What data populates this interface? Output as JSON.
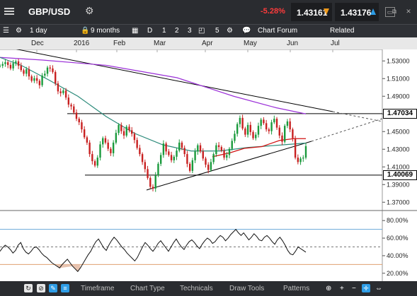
{
  "header": {
    "symbol": "GBP/USD",
    "change": "-5.28%",
    "bid": "1.43161",
    "ask": "1.43176",
    "icons": [
      "menu-icon",
      "gear-icon",
      "window-restore-icon",
      "popout-icon",
      "close-icon"
    ]
  },
  "toolbar": {
    "timeframe": "1 day",
    "range": "9 months",
    "buttons": [
      "D",
      "1",
      "2",
      "3"
    ],
    "count": "5",
    "forum": "Chart Forum",
    "related": "Related"
  },
  "axis_months": [
    "Dec",
    "2016",
    "Feb",
    "Mar",
    "Apr",
    "May",
    "Jun",
    "Jul"
  ],
  "price_tags": {
    "upper": "1.47034",
    "lower": "1.40069"
  },
  "price_axis": [
    "1.53000",
    "1.51000",
    "1.49000",
    "1.47000",
    "1.45000",
    "1.43000",
    "1.41000",
    "1.39000",
    "1.37000"
  ],
  "rsi_axis": [
    "80.00%",
    "60.00%",
    "40.00%",
    "20.00%"
  ],
  "bottom": {
    "tabs": [
      "Timeframe",
      "Chart Type",
      "Technicals",
      "Draw Tools",
      "Patterns"
    ]
  },
  "colors": {
    "bull": "#1a9a3c",
    "bear": "#c82020",
    "ma_long": "#9b30d8",
    "ma_mid": "#2b8a7a",
    "ma_short": "#d11111",
    "rsi_fill": "#e8c4b0"
  },
  "chart_data": {
    "type": "candlestick",
    "ylim": [
      1.363,
      1.543
    ],
    "levels": {
      "resistance": 1.47034,
      "support": 1.40069
    },
    "closes": [
      1.5245,
      1.5265,
      1.5285,
      1.5255,
      1.5215,
      1.5275,
      1.5295,
      1.5245,
      1.5195,
      1.5155,
      1.5205,
      1.5125,
      1.5075,
      1.5105,
      1.5075,
      1.5025,
      1.5135,
      1.5155,
      1.5225,
      1.5215,
      1.5175,
      1.5045,
      1.4955,
      1.4935,
      1.4965,
      1.4885,
      1.4805,
      1.4785,
      1.4715,
      1.4645,
      1.4605,
      1.4525,
      1.4435,
      1.4375,
      1.4245,
      1.4165,
      1.4115,
      1.4205,
      1.4355,
      1.4425,
      1.4375,
      1.4305,
      1.4255,
      1.4375,
      1.4485,
      1.4575,
      1.4505,
      1.4455,
      1.4555,
      1.4515,
      1.4475,
      1.4405,
      1.4315,
      1.4245,
      1.4155,
      1.4075,
      1.3975,
      1.3875,
      1.3855,
      1.4005,
      1.4135,
      1.4235,
      1.4365,
      1.4275,
      1.4235,
      1.4175,
      1.4215,
      1.4285,
      1.4375,
      1.4315,
      1.4245,
      1.4135,
      1.4055,
      1.4175,
      1.4275,
      1.4345,
      1.4275,
      1.4195,
      1.4125,
      1.4065,
      1.4155,
      1.4245,
      1.4345,
      1.4325,
      1.4285,
      1.4205,
      1.4235,
      1.4305,
      1.4395,
      1.4475,
      1.4585,
      1.4655,
      1.4535,
      1.4465,
      1.4575,
      1.4495,
      1.4425,
      1.4465,
      1.4565,
      1.4635,
      1.4595,
      1.4525,
      1.4505,
      1.4605,
      1.4645,
      1.4545,
      1.4455,
      1.4385,
      1.4565,
      1.4615,
      1.4525,
      1.4425,
      1.4205,
      1.4155,
      1.4195,
      1.4205,
      1.4335
    ],
    "ma_long": [
      [
        0,
        1.534
      ],
      [
        60,
        1.531
      ],
      [
        150,
        1.525
      ],
      [
        250,
        1.511
      ],
      [
        330,
        1.49
      ],
      [
        390,
        1.477
      ],
      [
        432,
        1.47
      ]
    ],
    "ma_mid": [
      [
        0,
        1.534
      ],
      [
        30,
        1.525
      ],
      [
        70,
        1.508
      ],
      [
        110,
        1.49
      ],
      [
        150,
        1.467
      ],
      [
        190,
        1.448
      ],
      [
        230,
        1.435
      ],
      [
        270,
        1.428
      ],
      [
        310,
        1.428
      ],
      [
        350,
        1.432
      ],
      [
        400,
        1.435
      ],
      [
        432,
        1.437
      ]
    ],
    "ma_short": [
      [
        300,
        1.4215
      ],
      [
        325,
        1.426
      ],
      [
        345,
        1.431
      ],
      [
        370,
        1.433
      ],
      [
        395,
        1.44
      ],
      [
        415,
        1.442
      ],
      [
        432,
        1.442
      ]
    ],
    "rsi": [
      45,
      49,
      52,
      50,
      47,
      43,
      46,
      52,
      55,
      48,
      44,
      42,
      45,
      49,
      50,
      47,
      43,
      40,
      38,
      35,
      32,
      30,
      28,
      26,
      30,
      33,
      36,
      32,
      28,
      25,
      22,
      26,
      31,
      36,
      41,
      45,
      51,
      56,
      59,
      54,
      49,
      46,
      52,
      57,
      61,
      58,
      54,
      50,
      47,
      43,
      40,
      37,
      34,
      38,
      44,
      50,
      55,
      52,
      48,
      45,
      49,
      54,
      57,
      53,
      49,
      45,
      50,
      55,
      59,
      54,
      50,
      47,
      52,
      56,
      58,
      55,
      51,
      48,
      53,
      57,
      60,
      58,
      54,
      56,
      60,
      63,
      61,
      57,
      60,
      64,
      67,
      70,
      66,
      63,
      66,
      62,
      58,
      61,
      65,
      62,
      58,
      57,
      61,
      63,
      60,
      56,
      53,
      58,
      61,
      57,
      52,
      46,
      42,
      41,
      45,
      50,
      48,
      46,
      44
    ]
  }
}
